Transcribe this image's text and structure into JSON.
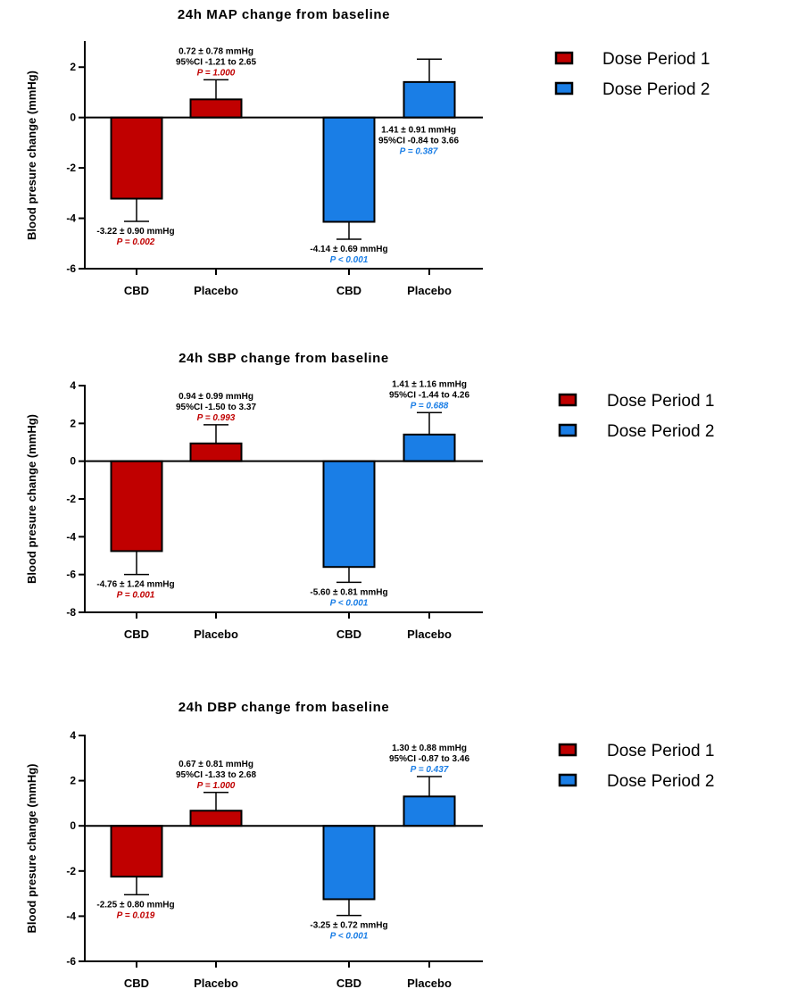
{
  "colors": {
    "period1": "#c00000",
    "period2": "#1a7ee6",
    "axis": "#000000"
  },
  "legend": [
    {
      "label": "Dose Period 1",
      "color": "#c00000"
    },
    {
      "label": "Dose Period 2",
      "color": "#1a7ee6"
    }
  ],
  "chart_data": [
    {
      "type": "bar",
      "title": "24h MAP change from baseline",
      "ylabel": "Blood presure change (mmHg)",
      "xlabel": "",
      "ylim": [
        -6,
        3
      ],
      "yticks": [
        -6,
        -4,
        -2,
        0,
        2
      ],
      "grid": false,
      "legend_position": "right",
      "categories": [
        "CBD",
        "Placebo",
        "CBD",
        "Placebo"
      ],
      "series": [
        {
          "name": "Dose Period 1",
          "color": "#c00000",
          "bars": [
            {
              "category": "CBD",
              "value": -3.22,
              "error": 0.9,
              "annotation": [
                {
                  "text": "-3.22 ± 0.90 mmHg",
                  "color": "#000000"
                },
                {
                  "text": "P = 0.002",
                  "color": "#c00000"
                }
              ]
            },
            {
              "category": "Placebo",
              "value": 0.72,
              "error": 0.78,
              "annotation": [
                {
                  "text": "0.72 ± 0.78 mmHg",
                  "color": "#000000"
                },
                {
                  "text": "95%CI -1.21 to 2.65",
                  "color": "#000000"
                },
                {
                  "text": "P = 1.000",
                  "color": "#c00000"
                }
              ]
            }
          ]
        },
        {
          "name": "Dose Period 2",
          "color": "#1a7ee6",
          "bars": [
            {
              "category": "CBD",
              "value": -4.14,
              "error": 0.69,
              "annotation": [
                {
                  "text": "-4.14 ± 0.69 mmHg",
                  "color": "#000000"
                },
                {
                  "text": "P < 0.001",
                  "color": "#1a7ee6"
                }
              ]
            },
            {
              "category": "Placebo",
              "value": 1.41,
              "error": 0.91,
              "annotation": [
                {
                  "text": "1.41 ± 0.91 mmHg",
                  "color": "#000000"
                },
                {
                  "text": "95%CI -0.84 to 3.66",
                  "color": "#000000"
                },
                {
                  "text": "P = 0.387",
                  "color": "#1a7ee6"
                }
              ]
            }
          ]
        }
      ]
    },
    {
      "type": "bar",
      "title": "24h SBP change from baseline",
      "ylabel": "Blood presure change (mmHg)",
      "xlabel": "",
      "ylim": [
        -8,
        4
      ],
      "yticks": [
        -8,
        -6,
        -4,
        -2,
        0,
        2,
        4
      ],
      "grid": false,
      "legend_position": "right",
      "categories": [
        "CBD",
        "Placebo",
        "CBD",
        "Placebo"
      ],
      "series": [
        {
          "name": "Dose Period 1",
          "color": "#c00000",
          "bars": [
            {
              "category": "CBD",
              "value": -4.76,
              "error": 1.24,
              "annotation": [
                {
                  "text": "-4.76 ± 1.24 mmHg",
                  "color": "#000000"
                },
                {
                  "text": "P = 0.001",
                  "color": "#c00000"
                }
              ]
            },
            {
              "category": "Placebo",
              "value": 0.94,
              "error": 0.99,
              "annotation": [
                {
                  "text": "0.94 ± 0.99 mmHg",
                  "color": "#000000"
                },
                {
                  "text": "95%CI -1.50 to 3.37",
                  "color": "#000000"
                },
                {
                  "text": "P = 0.993",
                  "color": "#c00000"
                }
              ]
            }
          ]
        },
        {
          "name": "Dose Period 2",
          "color": "#1a7ee6",
          "bars": [
            {
              "category": "CBD",
              "value": -5.6,
              "error": 0.81,
              "annotation": [
                {
                  "text": "-5.60 ± 0.81 mmHg",
                  "color": "#000000"
                },
                {
                  "text": "P < 0.001",
                  "color": "#1a7ee6"
                }
              ]
            },
            {
              "category": "Placebo",
              "value": 1.41,
              "error": 1.16,
              "annotation": [
                {
                  "text": "1.41 ± 1.16 mmHg",
                  "color": "#000000"
                },
                {
                  "text": "95%CI -1.44 to 4.26",
                  "color": "#000000"
                },
                {
                  "text": "P = 0.688",
                  "color": "#1a7ee6"
                }
              ]
            }
          ]
        }
      ]
    },
    {
      "type": "bar",
      "title": "24h DBP change from baseline",
      "ylabel": "Blood presure change (mmHg)",
      "xlabel": "",
      "ylim": [
        -6,
        4
      ],
      "yticks": [
        -6,
        -4,
        -2,
        0,
        2,
        4
      ],
      "grid": false,
      "legend_position": "right",
      "categories": [
        "CBD",
        "Placebo",
        "CBD",
        "Placebo"
      ],
      "series": [
        {
          "name": "Dose Period 1",
          "color": "#c00000",
          "bars": [
            {
              "category": "CBD",
              "value": -2.25,
              "error": 0.8,
              "annotation": [
                {
                  "text": "-2.25 ± 0.80 mmHg",
                  "color": "#000000"
                },
                {
                  "text": "P = 0.019",
                  "color": "#c00000"
                }
              ]
            },
            {
              "category": "Placebo",
              "value": 0.67,
              "error": 0.81,
              "annotation": [
                {
                  "text": "0.67 ± 0.81 mmHg",
                  "color": "#000000"
                },
                {
                  "text": "95%CI -1.33 to 2.68",
                  "color": "#000000"
                },
                {
                  "text": "P = 1.000",
                  "color": "#c00000"
                }
              ]
            }
          ]
        },
        {
          "name": "Dose Period 2",
          "color": "#1a7ee6",
          "bars": [
            {
              "category": "CBD",
              "value": -3.25,
              "error": 0.72,
              "annotation": [
                {
                  "text": "-3.25 ± 0.72 mmHg",
                  "color": "#000000"
                },
                {
                  "text": "P < 0.001",
                  "color": "#1a7ee6"
                }
              ]
            },
            {
              "category": "Placebo",
              "value": 1.3,
              "error": 0.88,
              "annotation": [
                {
                  "text": "1.30 ± 0.88 mmHg",
                  "color": "#000000"
                },
                {
                  "text": "95%CI -0.87 to 3.46",
                  "color": "#000000"
                },
                {
                  "text": "P = 0.437",
                  "color": "#1a7ee6"
                }
              ]
            }
          ]
        }
      ]
    }
  ]
}
